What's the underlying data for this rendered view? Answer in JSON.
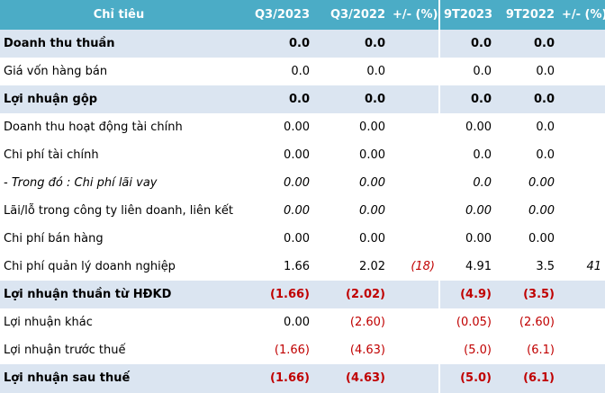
{
  "table": {
    "headers": [
      "Chỉ tiêu",
      "Q3/2023",
      "Q3/2022",
      "+/- (%)",
      "9T2023",
      "9T2022",
      "+/- (%)"
    ],
    "rows": [
      {
        "label": "Doanh thu thuần",
        "q3_2023": "0.0",
        "q3_2022": "0.0",
        "q_change": "",
        "t9_2023": "0.0",
        "t9_2022": "0.0",
        "t9_change": "",
        "style": "bold"
      },
      {
        "label": "Giá vốn hàng bán",
        "q3_2023": "0.0",
        "q3_2022": "0.0",
        "q_change": "",
        "t9_2023": "0.0",
        "t9_2022": "0.0",
        "t9_change": "",
        "style": "normal"
      },
      {
        "label": "Lợi nhuận gộp",
        "q3_2023": "0.0",
        "q3_2022": "0.0",
        "q_change": "",
        "t9_2023": "0.0",
        "t9_2022": "0.0",
        "t9_change": "",
        "style": "bold"
      },
      {
        "label": "Doanh thu hoạt động tài chính",
        "q3_2023": "0.00",
        "q3_2022": "0.00",
        "q_change": "",
        "t9_2023": "0.00",
        "t9_2022": "0.0",
        "t9_change": "",
        "style": "normal"
      },
      {
        "label": "Chi phí tài chính",
        "q3_2023": "0.00",
        "q3_2022": "0.00",
        "q_change": "",
        "t9_2023": "0.0",
        "t9_2022": "0.0",
        "t9_change": "",
        "style": "normal"
      },
      {
        "label": "- Trong đó : Chi phí lãi vay",
        "q3_2023": "0.00",
        "q3_2022": "0.00",
        "q_change": "",
        "t9_2023": "0.0",
        "t9_2022": "0.00",
        "t9_change": "",
        "style": "italic"
      },
      {
        "label": "Lãi/lỗ trong công ty liên doanh, liên kết",
        "q3_2023": "0.00",
        "q3_2022": "0.00",
        "q_change": "",
        "t9_2023": "0.00",
        "t9_2022": "0.00",
        "t9_change": "",
        "style": "italic-num"
      },
      {
        "label": "Chi phí bán hàng",
        "q3_2023": "0.00",
        "q3_2022": "0.00",
        "q_change": "",
        "t9_2023": "0.00",
        "t9_2022": "0.00",
        "t9_change": "",
        "style": "normal"
      },
      {
        "label": "Chi phí quản lý doanh nghiệp",
        "q3_2023": "1.66",
        "q3_2022": "2.02",
        "q_change": "(18)",
        "t9_2023": "4.91",
        "t9_2022": "3.5",
        "t9_change": "41",
        "style": "normal"
      },
      {
        "label": "Lợi nhuận thuần từ HĐKD",
        "q3_2023": "(1.66)",
        "q3_2022": "(2.02)",
        "q_change": "",
        "t9_2023": "(4.9)",
        "t9_2022": "(3.5)",
        "t9_change": "",
        "style": "bold"
      },
      {
        "label": "Lợi nhuận khác",
        "q3_2023": "0.00",
        "q3_2022": "(2.60)",
        "q_change": "",
        "t9_2023": "(0.05)",
        "t9_2022": "(2.60)",
        "t9_change": "",
        "style": "normal"
      },
      {
        "label": "Lợi nhuận trước thuế",
        "q3_2023": "(1.66)",
        "q3_2022": "(4.63)",
        "q_change": "",
        "t9_2023": "(5.0)",
        "t9_2022": "(6.1)",
        "t9_change": "",
        "style": "normal"
      },
      {
        "label": "Lợi nhuận sau thuế",
        "q3_2023": "(1.66)",
        "q3_2022": "(4.63)",
        "q_change": "",
        "t9_2023": "(5.0)",
        "t9_2022": "(6.1)",
        "t9_change": "",
        "style": "bold"
      }
    ]
  },
  "colors": {
    "header_bg": "#4bacc6",
    "highlight_row_bg": "#dbe5f1",
    "negative_text": "#c00000"
  }
}
